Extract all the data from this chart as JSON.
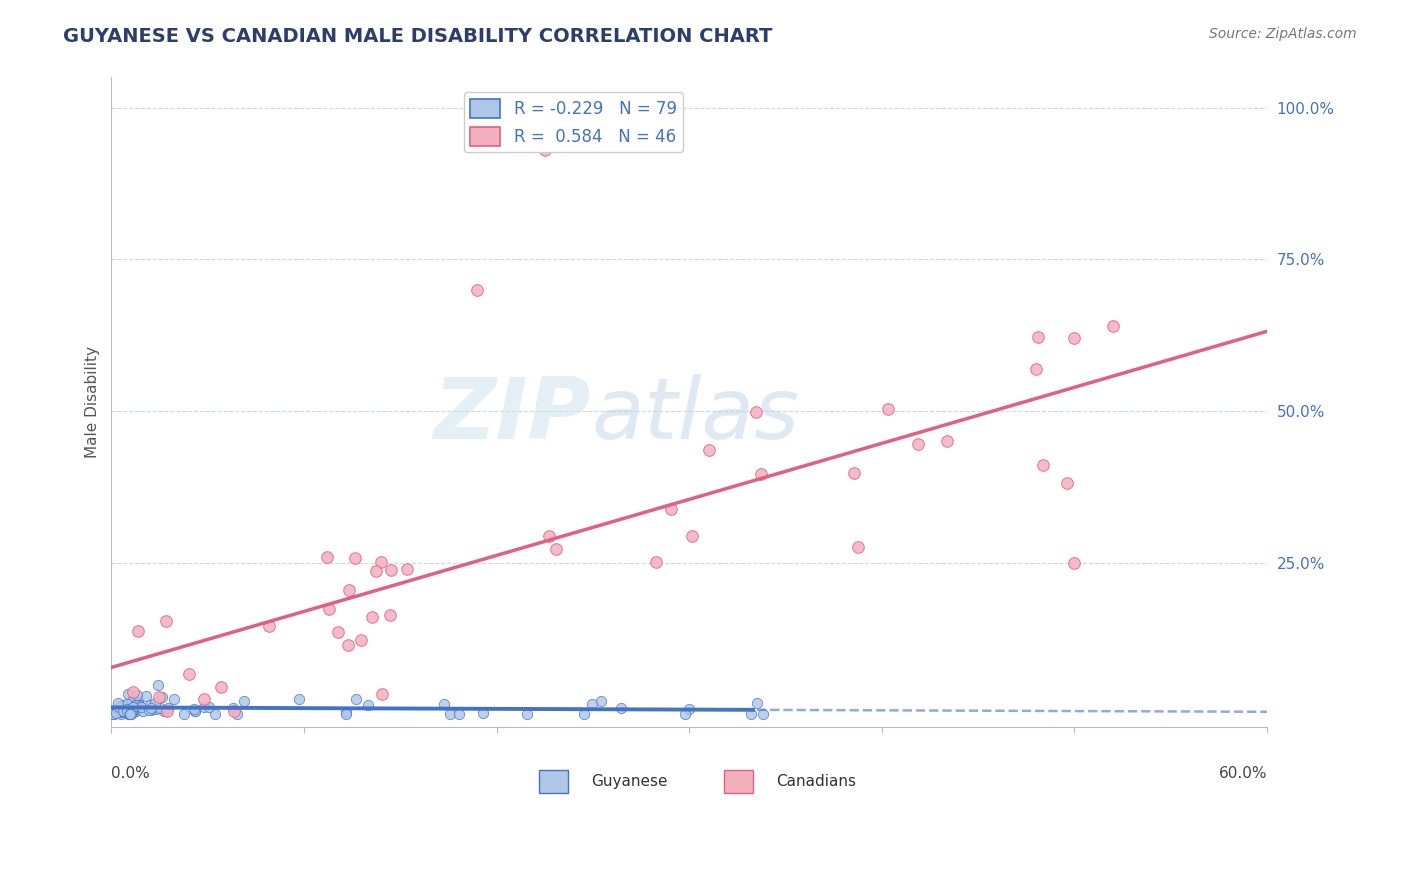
{
  "title": "GUYANESE VS CANADIAN MALE DISABILITY CORRELATION CHART",
  "source": "Source: ZipAtlas.com",
  "ylabel": "Male Disability",
  "xmin": 0.0,
  "xmax": 0.6,
  "ymin": -0.02,
  "ymax": 1.05,
  "blue_R": -0.229,
  "blue_N": 79,
  "pink_R": 0.584,
  "pink_N": 46,
  "blue_color": "#aec6e8",
  "pink_color": "#f5b0c0",
  "blue_line_color": "#4472c4",
  "pink_line_color": "#e06080",
  "legend_label_blue": "Guyanese",
  "legend_label_pink": "Canadians",
  "title_color": "#2c3e6b",
  "source_color": "#777777",
  "watermark_zip": "ZIP",
  "watermark_atlas": "atlas",
  "background_color": "#ffffff",
  "grid_color": "#c8d8e8",
  "seed": 7
}
